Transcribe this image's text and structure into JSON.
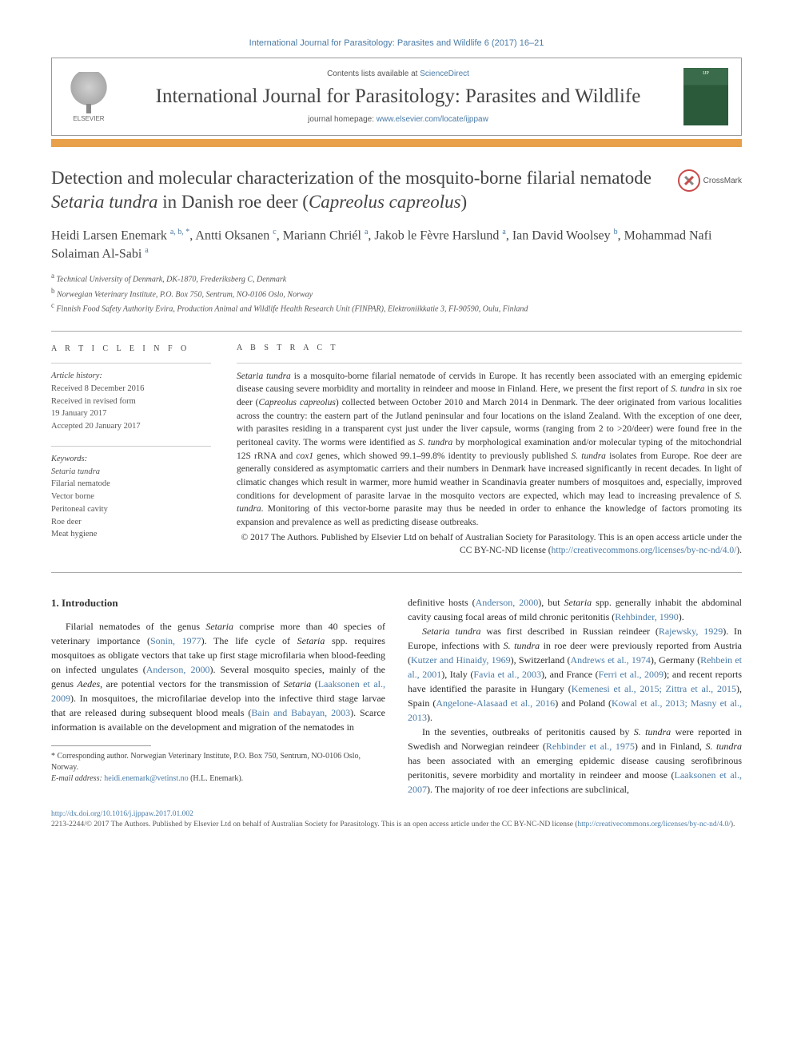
{
  "header": {
    "citation_line": "International Journal for Parasitology: Parasites and Wildlife 6 (2017) 16–21",
    "contents_prefix": "Contents lists available at ",
    "contents_link": "ScienceDirect",
    "journal_title": "International Journal for Parasitology: Parasites and Wildlife",
    "homepage_prefix": "journal homepage: ",
    "homepage_link": "www.elsevier.com/locate/ijppaw",
    "elsevier": "ELSEVIER",
    "cover_text": "IJP"
  },
  "crossmark": "CrossMark",
  "title_parts": {
    "p1": "Detection and molecular characterization of the mosquito-borne filarial nematode ",
    "it1": "Setaria tundra",
    "p2": " in Danish roe deer (",
    "it2": "Capreolus capreolus",
    "p3": ")"
  },
  "authors_html": "Heidi Larsen Enemark <sup>a, b, *</sup>, Antti Oksanen <sup>c</sup>, Mariann Chriél <sup>a</sup>, Jakob le Fèvre Harslund <sup>a</sup>, Ian David Woolsey <sup>b</sup>, Mohammad Nafi Solaiman Al-Sabi <sup>a</sup>",
  "affiliations": {
    "a": "Technical University of Denmark, DK-1870, Frederiksberg C, Denmark",
    "b": "Norwegian Veterinary Institute, P.O. Box 750, Sentrum, NO-0106 Oslo, Norway",
    "c": "Finnish Food Safety Authority Evira, Production Animal and Wildlife Health Research Unit (FINPAR), Elektroniikkatie 3, FI-90590, Oulu, Finland"
  },
  "info": {
    "heading": "A R T I C L E   I N F O",
    "history_label": "Article history:",
    "received": "Received 8 December 2016",
    "revised1": "Received in revised form",
    "revised2": "19 January 2017",
    "accepted": "Accepted 20 January 2017",
    "keywords_label": "Keywords:",
    "kw": [
      "Setaria tundra",
      "Filarial nematode",
      "Vector borne",
      "Peritoneal cavity",
      "Roe deer",
      "Meat hygiene"
    ]
  },
  "abstract": {
    "heading": "A B S T R A C T",
    "body_parts": [
      {
        "it": "Setaria tundra"
      },
      " is a mosquito-borne filarial nematode of cervids in Europe. It has recently been associated with an emerging epidemic disease causing severe morbidity and mortality in reindeer and moose in Finland. Here, we present the first report of ",
      {
        "it": "S. tundra"
      },
      " in six roe deer (",
      {
        "it": "Capreolus capreolus"
      },
      ") collected between October 2010 and March 2014 in Denmark. The deer originated from various localities across the country: the eastern part of the Jutland peninsular and four locations on the island Zealand. With the exception of one deer, with parasites residing in a transparent cyst just under the liver capsule, worms (ranging from 2 to >20/deer) were found free in the peritoneal cavity. The worms were identified as ",
      {
        "it": "S. tundra"
      },
      " by morphological examination and/or molecular typing of the mitochondrial 12S rRNA and ",
      {
        "it": "cox1"
      },
      " genes, which showed 99.1–99.8% identity to previously published ",
      {
        "it": "S. tundra"
      },
      " isolates from Europe. Roe deer are generally considered as asymptomatic carriers and their numbers in Denmark have increased significantly in recent decades. In light of climatic changes which result in warmer, more humid weather in Scandinavia greater numbers of mosquitoes and, especially, improved conditions for development of parasite larvae in the mosquito vectors are expected, which may lead to increasing prevalence of ",
      {
        "it": "S. tundra"
      },
      ". Monitoring of this vector-borne parasite may thus be needed in order to enhance the knowledge of factors promoting its expansion and prevalence as well as predicting disease outbreaks."
    ],
    "copyright": "© 2017 The Authors. Published by Elsevier Ltd on behalf of Australian Society for Parasitology. This is an open access article under the CC BY-NC-ND license (",
    "copyright_link": "http://creativecommons.org/licenses/by-nc-nd/4.0/",
    "copyright_close": ")."
  },
  "body": {
    "section_heading": "1. Introduction",
    "paragraphs": [
      "Filarial nematodes of the genus <em>Setaria</em> comprise more than 40 species of veterinary importance (<a class='cite'>Sonin, 1977</a>). The life cycle of <em>Setaria</em> spp. requires mosquitoes as obligate vectors that take up first stage microfilaria when blood-feeding on infected ungulates (<a class='cite'>Anderson, 2000</a>). Several mosquito species, mainly of the genus <em>Aedes</em>, are potential vectors for the transmission of <em>Setaria</em> (<a class='cite'>Laaksonen et al., 2009</a>). In mosquitoes, the microfilariae develop into the infective third stage larvae that are released during subsequent blood meals (<a class='cite'>Bain and Babayan, 2003</a>). Scarce information is available on the development and migration of the nematodes in",
      "definitive hosts (<a class='cite'>Anderson, 2000</a>), but <em>Setaria</em> spp. generally inhabit the abdominal cavity causing focal areas of mild chronic peritonitis (<a class='cite'>Rehbinder, 1990</a>).",
      "<em>Setaria tundra</em> was first described in Russian reindeer (<a class='cite'>Rajewsky, 1929</a>). In Europe, infections with <em>S. tundra</em> in roe deer were previously reported from Austria (<a class='cite'>Kutzer and Hinaidy, 1969</a>), Switzerland (<a class='cite'>Andrews et al., 1974</a>), Germany (<a class='cite'>Rehbein et al., 2001</a>), Italy (<a class='cite'>Favia et al., 2003</a>), and France (<a class='cite'>Ferri et al., 2009</a>); and recent reports have identified the parasite in Hungary (<a class='cite'>Kemenesi et al., 2015; Zittra et al., 2015</a>), Spain (<a class='cite'>Angelone-Alasaad et al., 2016</a>) and Poland (<a class='cite'>Kowal et al., 2013; Masny et al., 2013</a>).",
      "In the seventies, outbreaks of peritonitis caused by <em>S. tundra</em> were reported in Swedish and Norwegian reindeer (<a class='cite'>Rehbinder et al., 1975</a>) and in Finland, <em>S. tundra</em> has been associated with an emerging epidemic disease causing serofibrinous peritonitis, severe morbidity and mortality in reindeer and moose (<a class='cite'>Laaksonen et al., 2007</a>). The majority of roe deer infections are subclinical,"
    ]
  },
  "footnotes": {
    "corr": "* Corresponding author. Norwegian Veterinary Institute, P.O. Box 750, Sentrum, NO-0106 Oslo, Norway.",
    "email_label": "E-mail address: ",
    "email": "heidi.enemark@vetinst.no",
    "email_suffix": " (H.L. Enemark)."
  },
  "footer": {
    "doi": "http://dx.doi.org/10.1016/j.ijppaw.2017.01.002",
    "issn_line": "2213-2244/© 2017 The Authors. Published by Elsevier Ltd on behalf of Australian Society for Parasitology. This is an open access article under the CC BY-NC-ND license (",
    "license_link": "http://creativecommons.org/licenses/by-nc-nd/4.0/",
    "issn_close": ")."
  },
  "colors": {
    "link": "#4a7ba6",
    "orange_bar": "#e8a04a",
    "text": "#2a2a2a"
  }
}
